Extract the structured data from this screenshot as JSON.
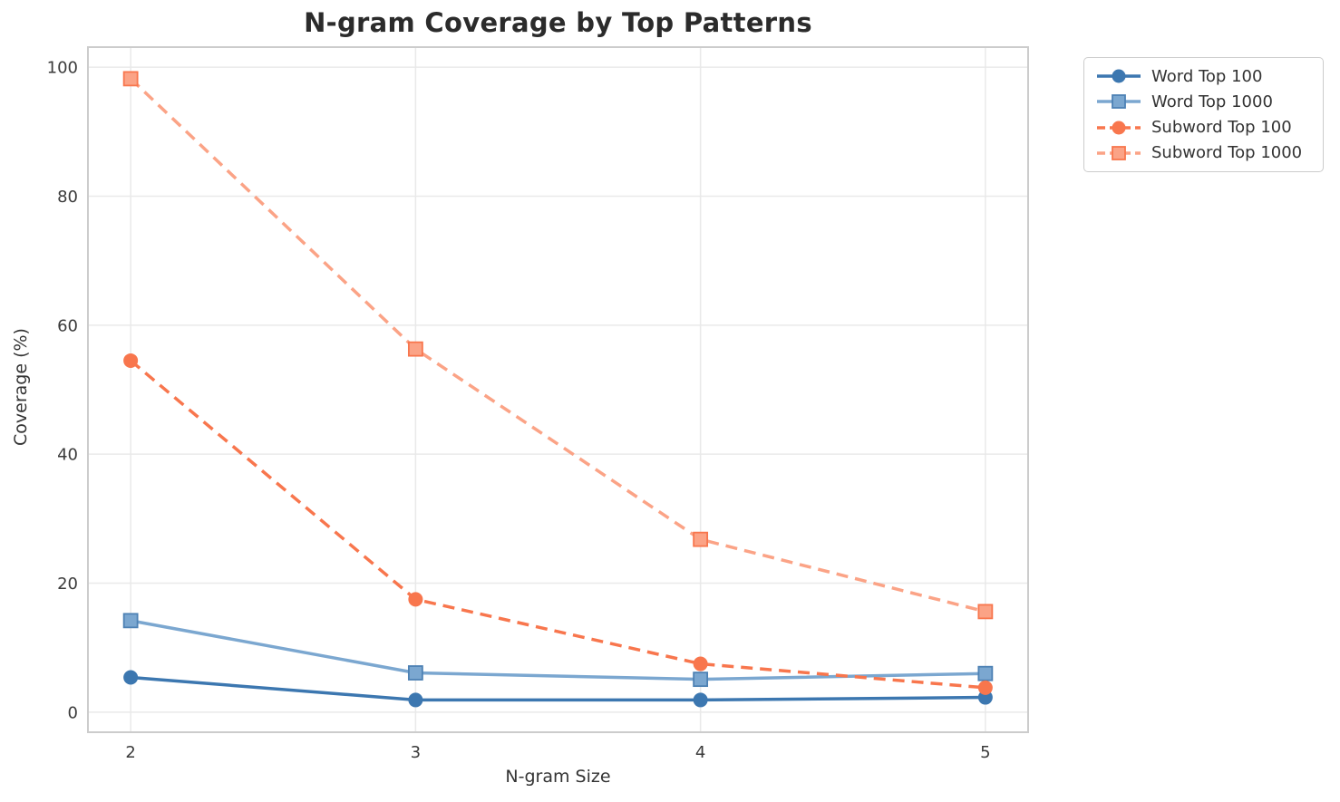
{
  "chart_data": {
    "type": "line",
    "title": "N-gram Coverage by Top Patterns",
    "xlabel": "N-gram Size",
    "ylabel": "Coverage (%)",
    "x": [
      2,
      3,
      4,
      5
    ],
    "xticks": [
      2,
      3,
      4,
      5
    ],
    "yticks": [
      0,
      20,
      40,
      60,
      80,
      100
    ],
    "xlim": [
      1.85,
      5.15
    ],
    "ylim": [
      -3.1,
      103.1
    ],
    "grid": true,
    "legend_position": "outside-top-right",
    "series": [
      {
        "name": "Word Top 100",
        "values": [
          5.4,
          1.9,
          1.9,
          2.3
        ],
        "color": "#3c77b0",
        "edge": "#3c77b0",
        "line": "solid",
        "marker": "circle"
      },
      {
        "name": "Word Top 1000",
        "values": [
          14.2,
          6.1,
          5.1,
          6.0
        ],
        "color": "#7ba7d0",
        "edge": "#4d81b4",
        "line": "solid",
        "marker": "square"
      },
      {
        "name": "Subword Top 100",
        "values": [
          54.5,
          17.5,
          7.5,
          3.8
        ],
        "color": "#f8764d",
        "edge": "#f8764d",
        "line": "dashed",
        "marker": "circle"
      },
      {
        "name": "Subword Top 1000",
        "values": [
          98.2,
          56.3,
          26.8,
          15.6
        ],
        "color": "#fba386",
        "edge": "#f8764d",
        "line": "dashed",
        "marker": "square"
      }
    ],
    "colors": {
      "grid": "#e9e9e9",
      "spine": "#cccccc",
      "tick_text": "#3a3a3a",
      "title_text": "#2b2b2b"
    }
  }
}
